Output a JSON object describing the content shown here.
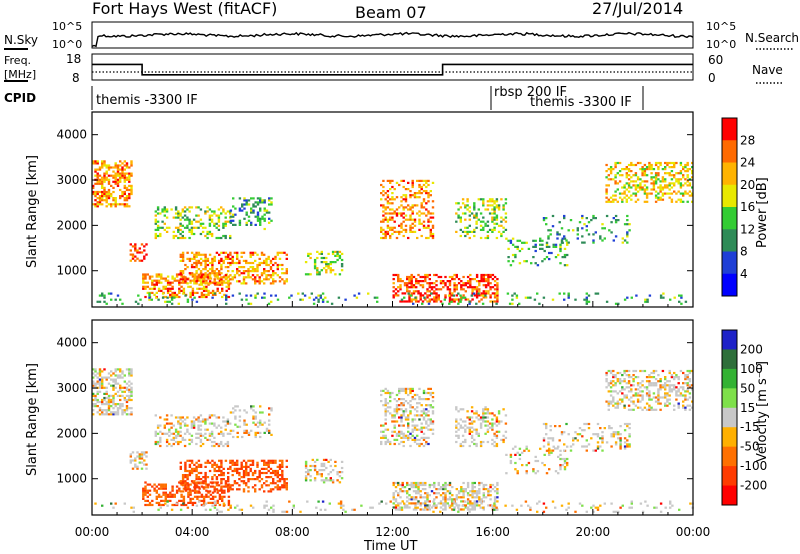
{
  "header": {
    "station": "Fort Hays West (fitACF)",
    "beam": "Beam 07",
    "date": "27/Jul/2014"
  },
  "noise_panel": {
    "left_label": "N.Sky",
    "right_label": "N.Search",
    "left_ticks": [
      "10^5",
      "10^0"
    ],
    "right_ticks": [
      "10^5",
      "10^0"
    ]
  },
  "freq_panel": {
    "left_label_line1": "Freq.",
    "left_label_line2": "[MHz]",
    "right_label": "Nave",
    "left_ticks": [
      "18",
      "8"
    ],
    "right_ticks": [
      "60",
      "0"
    ],
    "freq_values_mhz": [
      {
        "from": "00:00",
        "to": "02:00",
        "value": 14
      },
      {
        "from": "02:00",
        "to": "14:00",
        "value": 10
      },
      {
        "from": "14:00",
        "to": "24:00",
        "value": 14
      }
    ]
  },
  "cpid": {
    "label": "CPID",
    "segments": [
      {
        "text": "themis -3300 IF",
        "from": "00:00"
      },
      {
        "text": "rbsp 200 IF",
        "from": "16:00"
      },
      {
        "text": "themis -3300 IF",
        "from": "17:00"
      }
    ]
  },
  "power_colorbar": {
    "title": "Power [dB]",
    "ticks": [
      "28",
      "24",
      "20",
      "16",
      "12",
      "8",
      "4"
    ],
    "colors": [
      "#ff0000",
      "#ff6a00",
      "#ffb300",
      "#e8e800",
      "#33cc33",
      "#2e8b57",
      "#1f3fd6",
      "#0000ff"
    ]
  },
  "velocity_colorbar": {
    "title": "Velocity [m s⁻¹]",
    "ticks": [
      "200",
      "100",
      "50",
      "15",
      "-15",
      "-50",
      "-100",
      "-200"
    ],
    "colors": [
      "#1e22c8",
      "#2e6f3a",
      "#33b233",
      "#7ee04a",
      "#c8c8c8",
      "#ffb000",
      "#ff7000",
      "#ff3b00",
      "#ff0000"
    ]
  },
  "chart_data": [
    {
      "type": "heatmap",
      "ylabel": "Slant Range [km]",
      "xlabel": "",
      "x_ticks": [
        "00:00",
        "04:00",
        "08:00",
        "12:00",
        "16:00",
        "20:00",
        "00:00"
      ],
      "y_ticks": [
        1000,
        2000,
        3000,
        4000
      ],
      "ylim": [
        200,
        4500
      ],
      "xlim_hours": [
        0,
        24
      ],
      "colorbar": "power_colorbar"
    },
    {
      "type": "heatmap",
      "ylabel": "Slant Range [km]",
      "xlabel": "Time UT",
      "x_ticks": [
        "00:00",
        "04:00",
        "08:00",
        "12:00",
        "16:00",
        "20:00",
        "00:00"
      ],
      "y_ticks": [
        1000,
        2000,
        3000,
        4000
      ],
      "ylim": [
        200,
        4500
      ],
      "xlim_hours": [
        0,
        24
      ],
      "colorbar": "velocity_colorbar"
    }
  ]
}
